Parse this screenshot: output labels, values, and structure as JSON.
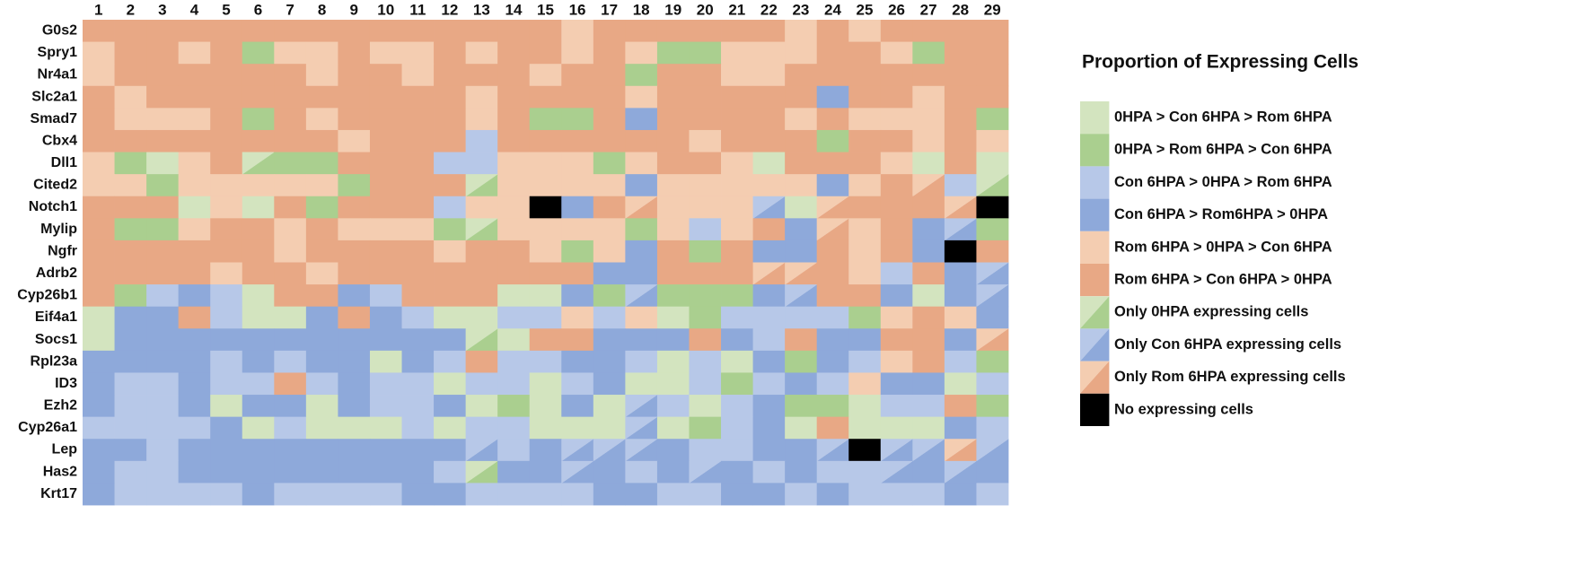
{
  "chart_data": {
    "type": "heatmap",
    "columns": [
      "1",
      "2",
      "3",
      "4",
      "5",
      "6",
      "7",
      "8",
      "9",
      "10",
      "11",
      "12",
      "13",
      "14",
      "15",
      "16",
      "17",
      "18",
      "19",
      "20",
      "21",
      "22",
      "23",
      "24",
      "25",
      "26",
      "27",
      "28",
      "29"
    ],
    "rows": [
      "G0s2",
      "Spry1",
      "Nr4a1",
      "Slc2a1",
      "Smad7",
      "Cbx4",
      "Dll1",
      "Cited2",
      "Notch1",
      "Mylip",
      "Ngfr",
      "Adrb2",
      "Cyp26b1",
      "Eif4a1",
      "Socs1",
      "Rpl23a",
      "ID3",
      "Ezh2",
      "Cyp26a1",
      "Lep",
      "Has2",
      "Krt17"
    ],
    "legend": {
      "title": "Proportion of Expressing Cells",
      "items": [
        {
          "label": "0HPA > Con 6HPA > Rom 6HPA",
          "colors": [
            "#d3e4bf",
            "#d3e4bf"
          ]
        },
        {
          "label": "0HPA > Rom 6HPA > Con 6HPA",
          "colors": [
            "#aacf8f",
            "#aacf8f"
          ]
        },
        {
          "label": "Con 6HPA > 0HPA > Rom 6HPA",
          "colors": [
            "#b7c8e8",
            "#b7c8e8"
          ]
        },
        {
          "label": "Con 6HPA > Rom6HPA > 0HPA",
          "colors": [
            "#8ea9da",
            "#8ea9da"
          ]
        },
        {
          "label": "Rom 6HPA  > 0HPA > Con 6HPA",
          "colors": [
            "#f4cdb1",
            "#f4cdb1"
          ]
        },
        {
          "label": "Rom 6HPA  > Con 6HPA > 0HPA",
          "colors": [
            "#e8a885",
            "#e8a885"
          ]
        },
        {
          "label": "Only 0HPA expressing cells",
          "colors": [
            "#d3e4bf",
            "#aacf8f"
          ]
        },
        {
          "label": "Only Con 6HPA expressing cells",
          "colors": [
            "#b7c8e8",
            "#8ea9da"
          ]
        },
        {
          "label": "Only Rom 6HPA expressing cells",
          "colors": [
            "#f4cdb1",
            "#e8a885"
          ]
        },
        {
          "label": "No expressing cells",
          "colors": [
            "#000000",
            "#000000"
          ]
        }
      ]
    },
    "values": [
      [
        5,
        5,
        5,
        5,
        5,
        5,
        5,
        5,
        5,
        5,
        5,
        5,
        5,
        5,
        5,
        4,
        5,
        5,
        5,
        5,
        5,
        5,
        4,
        5,
        4,
        5,
        5,
        5,
        5
      ],
      [
        4,
        5,
        5,
        4,
        5,
        1,
        4,
        4,
        5,
        4,
        4,
        5,
        4,
        5,
        5,
        4,
        5,
        4,
        1,
        1,
        4,
        4,
        4,
        5,
        5,
        4,
        1,
        5,
        5
      ],
      [
        4,
        5,
        5,
        5,
        5,
        5,
        5,
        4,
        5,
        5,
        4,
        5,
        5,
        5,
        4,
        5,
        5,
        1,
        5,
        5,
        4,
        4,
        5,
        5,
        5,
        5,
        5,
        5,
        5
      ],
      [
        5,
        4,
        5,
        5,
        5,
        5,
        5,
        5,
        5,
        5,
        5,
        5,
        4,
        5,
        5,
        5,
        5,
        4,
        5,
        5,
        5,
        5,
        5,
        3,
        5,
        5,
        4,
        5,
        5
      ],
      [
        5,
        4,
        4,
        4,
        5,
        1,
        5,
        4,
        5,
        5,
        5,
        5,
        4,
        5,
        1,
        1,
        5,
        3,
        5,
        5,
        5,
        5,
        4,
        5,
        4,
        4,
        4,
        5,
        1
      ],
      [
        5,
        5,
        5,
        5,
        5,
        5,
        5,
        5,
        4,
        5,
        5,
        5,
        2,
        5,
        5,
        5,
        5,
        5,
        5,
        4,
        5,
        5,
        5,
        1,
        5,
        5,
        4,
        5,
        4
      ],
      [
        4,
        1,
        0,
        4,
        5,
        6,
        1,
        1,
        5,
        5,
        5,
        2,
        2,
        4,
        4,
        4,
        1,
        4,
        5,
        5,
        4,
        0,
        5,
        5,
        5,
        4,
        0,
        5,
        0
      ],
      [
        4,
        4,
        1,
        4,
        4,
        4,
        4,
        4,
        1,
        5,
        5,
        5,
        6,
        4,
        4,
        4,
        4,
        3,
        4,
        4,
        4,
        4,
        4,
        3,
        4,
        5,
        8,
        2,
        6
      ],
      [
        5,
        5,
        5,
        0,
        4,
        0,
        5,
        1,
        5,
        5,
        5,
        2,
        4,
        4,
        9,
        3,
        5,
        8,
        4,
        4,
        4,
        7,
        0,
        8,
        5,
        5,
        5,
        8,
        9
      ],
      [
        5,
        1,
        1,
        4,
        5,
        5,
        4,
        5,
        4,
        4,
        4,
        1,
        6,
        4,
        4,
        4,
        4,
        1,
        4,
        2,
        4,
        5,
        3,
        8,
        4,
        5,
        3,
        7,
        1
      ],
      [
        5,
        5,
        5,
        5,
        5,
        5,
        4,
        5,
        5,
        5,
        5,
        4,
        5,
        5,
        4,
        1,
        4,
        3,
        5,
        1,
        5,
        3,
        3,
        5,
        4,
        5,
        3,
        9,
        5
      ],
      [
        5,
        5,
        5,
        5,
        4,
        5,
        5,
        4,
        5,
        5,
        5,
        5,
        5,
        5,
        5,
        5,
        3,
        3,
        5,
        5,
        5,
        8,
        8,
        5,
        4,
        2,
        5,
        3,
        7
      ],
      [
        5,
        1,
        2,
        3,
        2,
        0,
        5,
        5,
        3,
        2,
        5,
        5,
        5,
        0,
        0,
        3,
        1,
        7,
        1,
        1,
        1,
        3,
        7,
        5,
        5,
        3,
        0,
        3,
        7
      ],
      [
        0,
        3,
        3,
        5,
        2,
        0,
        0,
        3,
        5,
        3,
        2,
        0,
        0,
        2,
        2,
        4,
        2,
        4,
        0,
        1,
        2,
        2,
        2,
        2,
        1,
        4,
        5,
        4,
        3
      ],
      [
        0,
        3,
        3,
        3,
        3,
        3,
        3,
        3,
        3,
        3,
        3,
        3,
        6,
        0,
        5,
        5,
        3,
        3,
        3,
        5,
        3,
        2,
        5,
        3,
        3,
        5,
        5,
        3,
        8
      ],
      [
        3,
        3,
        3,
        3,
        2,
        3,
        2,
        3,
        3,
        0,
        3,
        2,
        5,
        2,
        2,
        3,
        3,
        2,
        0,
        2,
        0,
        3,
        1,
        3,
        2,
        4,
        5,
        2,
        1
      ],
      [
        3,
        2,
        2,
        3,
        2,
        2,
        5,
        2,
        3,
        2,
        2,
        0,
        2,
        2,
        0,
        2,
        3,
        0,
        0,
        2,
        1,
        2,
        3,
        2,
        4,
        3,
        3,
        0,
        2
      ],
      [
        3,
        2,
        2,
        3,
        0,
        3,
        3,
        0,
        3,
        2,
        2,
        3,
        0,
        1,
        0,
        3,
        0,
        7,
        2,
        0,
        2,
        3,
        1,
        1,
        0,
        2,
        2,
        5,
        1
      ],
      [
        2,
        2,
        2,
        2,
        3,
        0,
        2,
        0,
        0,
        0,
        2,
        0,
        2,
        2,
        0,
        0,
        0,
        7,
        0,
        1,
        2,
        3,
        0,
        5,
        0,
        0,
        0,
        3,
        2
      ],
      [
        3,
        3,
        2,
        3,
        3,
        3,
        3,
        3,
        3,
        3,
        3,
        3,
        7,
        2,
        3,
        7,
        7,
        7,
        3,
        2,
        2,
        3,
        3,
        7,
        9,
        7,
        7,
        8,
        7
      ],
      [
        3,
        2,
        2,
        3,
        3,
        3,
        3,
        3,
        3,
        3,
        3,
        2,
        6,
        3,
        3,
        7,
        3,
        2,
        3,
        7,
        3,
        2,
        3,
        2,
        2,
        7,
        3,
        7,
        3
      ],
      [
        3,
        2,
        2,
        2,
        2,
        3,
        2,
        2,
        2,
        2,
        3,
        3,
        2,
        2,
        2,
        2,
        3,
        3,
        2,
        2,
        3,
        3,
        2,
        3,
        2,
        2,
        2,
        3,
        2
      ]
    ]
  }
}
